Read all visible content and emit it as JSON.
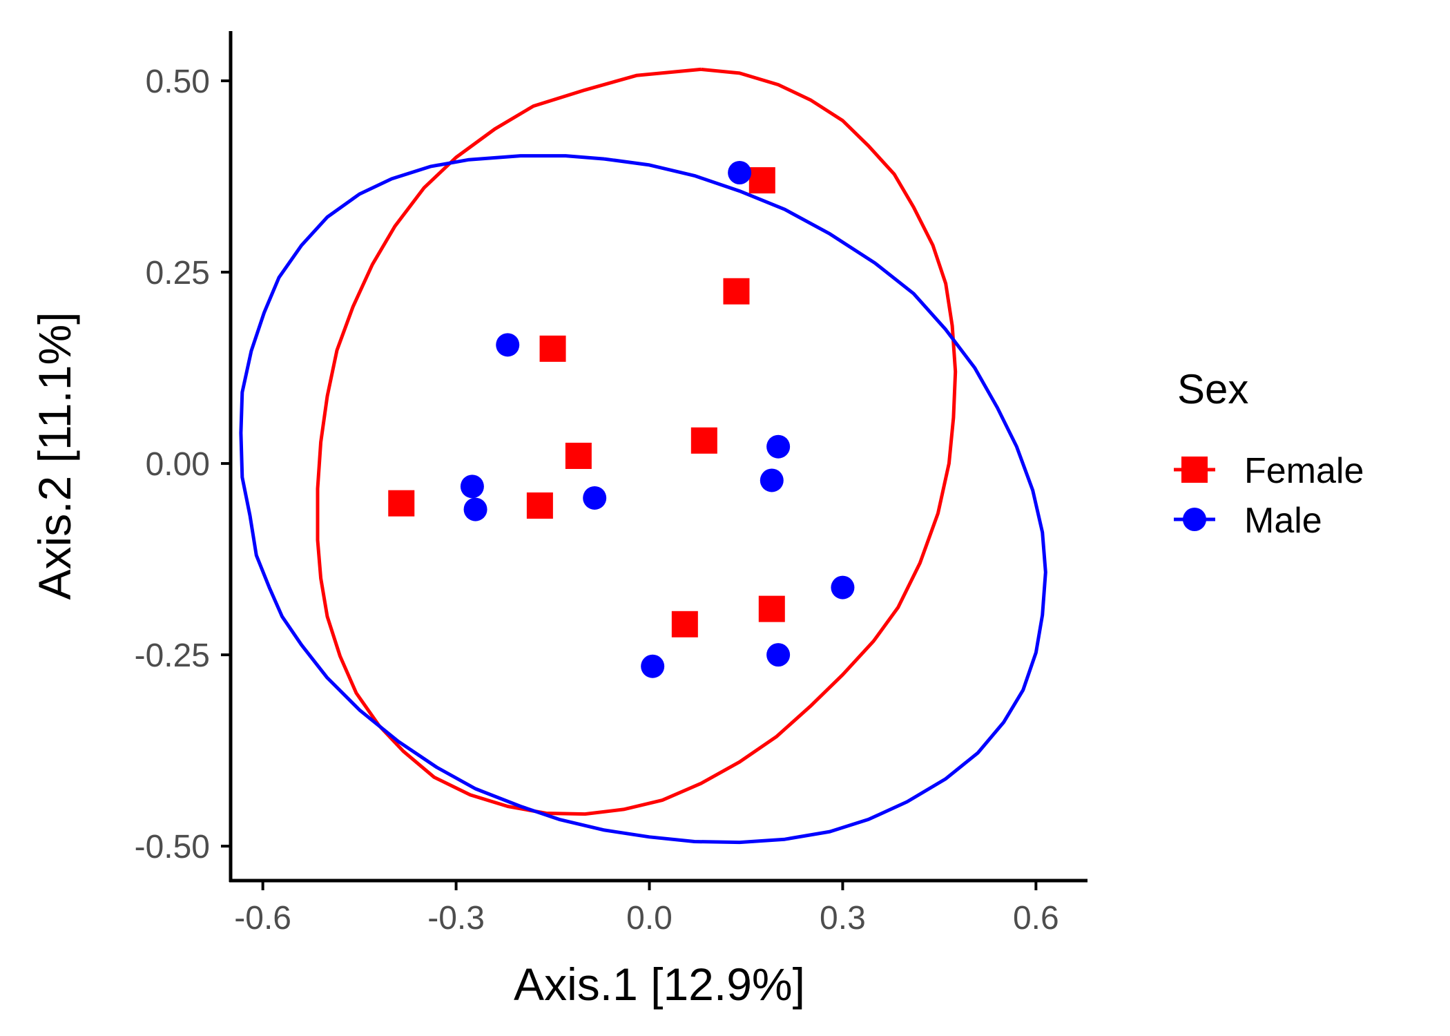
{
  "chart_data": {
    "type": "scatter",
    "xlabel": "Axis.1   [12.9%]",
    "ylabel": "Axis.2   [11.1%]",
    "xlim": [
      -0.65,
      0.68
    ],
    "ylim": [
      -0.545,
      0.565
    ],
    "xticks": [
      "-0.6",
      "-0.3",
      "0.0",
      "0.3",
      "0.6"
    ],
    "xtick_values": [
      -0.6,
      -0.3,
      0.0,
      0.3,
      0.6
    ],
    "yticks": [
      "0.50",
      "0.25",
      "0.00",
      "-0.25",
      "-0.50"
    ],
    "ytick_values": [
      0.5,
      0.25,
      0.0,
      -0.25,
      -0.5
    ],
    "grid": false,
    "legend": {
      "title": "Sex",
      "position": "right"
    },
    "series": [
      {
        "name": "Female",
        "color": "#ff0000",
        "marker": "square",
        "points": [
          [
            0.175,
            0.37
          ],
          [
            0.135,
            0.225
          ],
          [
            -0.15,
            0.15
          ],
          [
            -0.11,
            0.01
          ],
          [
            0.085,
            0.03
          ],
          [
            -0.385,
            -0.052
          ],
          [
            -0.17,
            -0.055
          ],
          [
            0.055,
            -0.21
          ],
          [
            0.19,
            -0.19
          ]
        ],
        "ellipse": [
          [
            0.08,
            0.515
          ],
          [
            0.14,
            0.51
          ],
          [
            0.2,
            0.495
          ],
          [
            0.25,
            0.475
          ],
          [
            0.3,
            0.448
          ],
          [
            0.34,
            0.415
          ],
          [
            0.38,
            0.378
          ],
          [
            0.41,
            0.335
          ],
          [
            0.44,
            0.285
          ],
          [
            0.46,
            0.235
          ],
          [
            0.47,
            0.18
          ],
          [
            0.475,
            0.12
          ],
          [
            0.472,
            0.06
          ],
          [
            0.465,
            0.0
          ],
          [
            0.448,
            -0.065
          ],
          [
            0.42,
            -0.13
          ],
          [
            0.386,
            -0.188
          ],
          [
            0.348,
            -0.232
          ],
          [
            0.3,
            -0.276
          ],
          [
            0.25,
            -0.317
          ],
          [
            0.197,
            -0.357
          ],
          [
            0.14,
            -0.39
          ],
          [
            0.08,
            -0.418
          ],
          [
            0.02,
            -0.44
          ],
          [
            -0.04,
            -0.452
          ],
          [
            -0.1,
            -0.458
          ],
          [
            -0.16,
            -0.457
          ],
          [
            -0.22,
            -0.448
          ],
          [
            -0.278,
            -0.433
          ],
          [
            -0.334,
            -0.41
          ],
          [
            -0.382,
            -0.376
          ],
          [
            -0.42,
            -0.342
          ],
          [
            -0.455,
            -0.3
          ],
          [
            -0.48,
            -0.252
          ],
          [
            -0.5,
            -0.2
          ],
          [
            -0.51,
            -0.15
          ],
          [
            -0.515,
            -0.1
          ],
          [
            -0.515,
            -0.033
          ],
          [
            -0.51,
            0.028
          ],
          [
            -0.5,
            0.088
          ],
          [
            -0.485,
            0.148
          ],
          [
            -0.46,
            0.205
          ],
          [
            -0.43,
            0.26
          ],
          [
            -0.395,
            0.31
          ],
          [
            -0.35,
            0.36
          ],
          [
            -0.3,
            0.4
          ],
          [
            -0.24,
            0.437
          ],
          [
            -0.18,
            0.467
          ],
          [
            -0.1,
            0.488
          ],
          [
            -0.02,
            0.507
          ],
          [
            0.08,
            0.515
          ]
        ]
      },
      {
        "name": "Male",
        "color": "#0000ff",
        "marker": "circle",
        "points": [
          [
            0.14,
            0.38
          ],
          [
            -0.22,
            0.155
          ],
          [
            0.2,
            0.022
          ],
          [
            0.19,
            -0.022
          ],
          [
            -0.275,
            -0.03
          ],
          [
            -0.27,
            -0.06
          ],
          [
            -0.085,
            -0.045
          ],
          [
            0.3,
            -0.162
          ],
          [
            0.2,
            -0.25
          ],
          [
            0.005,
            -0.265
          ]
        ],
        "ellipse": [
          [
            -0.07,
            0.398
          ],
          [
            0.0,
            0.39
          ],
          [
            0.07,
            0.376
          ],
          [
            0.14,
            0.356
          ],
          [
            0.21,
            0.332
          ],
          [
            0.28,
            0.3
          ],
          [
            0.35,
            0.262
          ],
          [
            0.41,
            0.222
          ],
          [
            0.46,
            0.175
          ],
          [
            0.505,
            0.125
          ],
          [
            0.54,
            0.073
          ],
          [
            0.57,
            0.022
          ],
          [
            0.595,
            -0.035
          ],
          [
            0.61,
            -0.09
          ],
          [
            0.615,
            -0.142
          ],
          [
            0.61,
            -0.198
          ],
          [
            0.6,
            -0.247
          ],
          [
            0.58,
            -0.296
          ],
          [
            0.55,
            -0.338
          ],
          [
            0.51,
            -0.378
          ],
          [
            0.46,
            -0.412
          ],
          [
            0.4,
            -0.442
          ],
          [
            0.34,
            -0.465
          ],
          [
            0.28,
            -0.481
          ],
          [
            0.21,
            -0.491
          ],
          [
            0.14,
            -0.495
          ],
          [
            0.07,
            -0.494
          ],
          [
            0.0,
            -0.488
          ],
          [
            -0.07,
            -0.479
          ],
          [
            -0.14,
            -0.465
          ],
          [
            -0.2,
            -0.448
          ],
          [
            -0.27,
            -0.425
          ],
          [
            -0.33,
            -0.397
          ],
          [
            -0.39,
            -0.363
          ],
          [
            -0.45,
            -0.322
          ],
          [
            -0.5,
            -0.28
          ],
          [
            -0.54,
            -0.237
          ],
          [
            -0.57,
            -0.2
          ],
          [
            -0.59,
            -0.162
          ],
          [
            -0.61,
            -0.12
          ],
          [
            -0.62,
            -0.068
          ],
          [
            -0.632,
            -0.018
          ],
          [
            -0.634,
            0.04
          ],
          [
            -0.632,
            0.093
          ],
          [
            -0.618,
            0.147
          ],
          [
            -0.598,
            0.197
          ],
          [
            -0.575,
            0.243
          ],
          [
            -0.54,
            0.285
          ],
          [
            -0.5,
            0.322
          ],
          [
            -0.45,
            0.352
          ],
          [
            -0.4,
            0.372
          ],
          [
            -0.34,
            0.388
          ],
          [
            -0.28,
            0.397
          ],
          [
            -0.2,
            0.402
          ],
          [
            -0.13,
            0.402
          ],
          [
            -0.07,
            0.398
          ]
        ]
      }
    ]
  }
}
